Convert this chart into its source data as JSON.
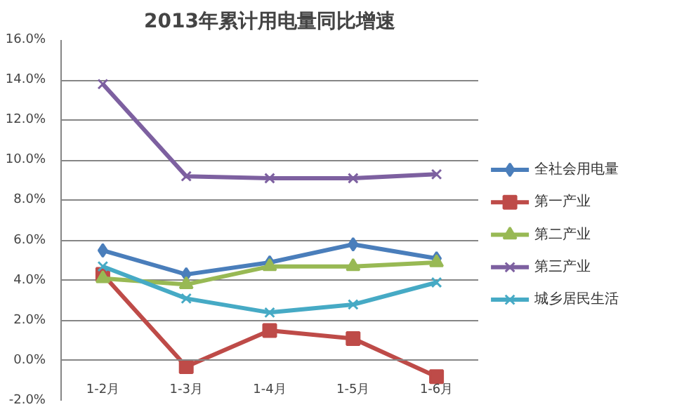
{
  "chart_data": {
    "type": "line",
    "title": "2013年累计用电量同比增速",
    "categories": [
      "1-2月",
      "1-3月",
      "1-4月",
      "1-5月",
      "1-6月"
    ],
    "series": [
      {
        "name": "全社会用电量",
        "color": "#4a7ebb",
        "marker": "diamond",
        "values": [
          5.5,
          4.3,
          4.9,
          5.8,
          5.1
        ]
      },
      {
        "name": "第一产业",
        "color": "#be4b48",
        "marker": "square",
        "values": [
          4.3,
          -0.3,
          1.5,
          1.1,
          -0.8
        ]
      },
      {
        "name": "第二产业",
        "color": "#98b954",
        "marker": "triangle",
        "values": [
          4.1,
          3.8,
          4.7,
          4.7,
          4.9
        ]
      },
      {
        "name": "第三产业",
        "color": "#7d60a0",
        "marker": "cross",
        "values": [
          13.8,
          9.2,
          9.1,
          9.1,
          9.3
        ]
      },
      {
        "name": "城乡居民生活",
        "color": "#46aac5",
        "marker": "cross",
        "values": [
          4.7,
          3.1,
          2.4,
          2.8,
          3.9
        ]
      }
    ],
    "ylim": [
      -2,
      16
    ],
    "yticks": [
      {
        "value": -2,
        "label": "-2.0%"
      },
      {
        "value": 0,
        "label": "0.0%"
      },
      {
        "value": 2,
        "label": "2.0%"
      },
      {
        "value": 4,
        "label": "4.0%"
      },
      {
        "value": 6,
        "label": "6.0%"
      },
      {
        "value": 8,
        "label": "8.0%"
      },
      {
        "value": 10,
        "label": "10.0%"
      },
      {
        "value": 12,
        "label": "12.0%"
      },
      {
        "value": 14,
        "label": "14.0%"
      },
      {
        "value": 16,
        "label": "16.0%"
      }
    ],
    "grid": "y",
    "legend": "right",
    "line_style": "solid"
  }
}
